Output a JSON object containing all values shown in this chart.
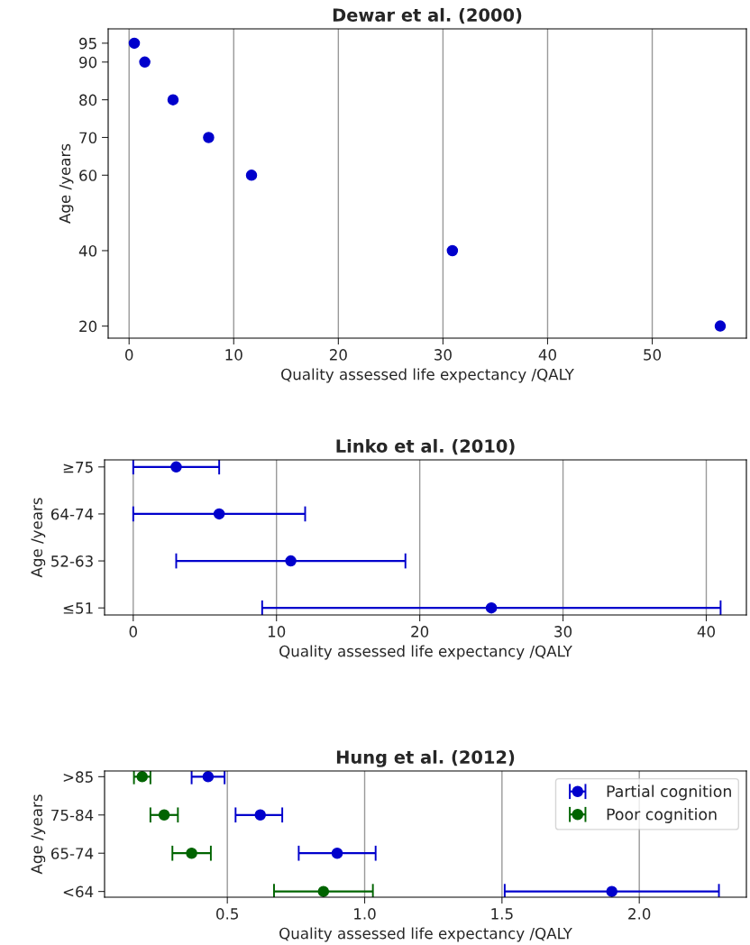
{
  "chart_data": [
    {
      "type": "scatter",
      "title": "Dewar et al. (2000)",
      "xlabel": "Quality assessed life expectancy /QALY",
      "ylabel": "Age /years",
      "x": [
        0.5,
        1.5,
        4.2,
        7.6,
        11.7,
        30.9,
        56.5
      ],
      "series": [
        {
          "color": "#0000cc",
          "values": [
            95,
            90,
            80,
            70,
            60,
            40,
            20
          ]
        }
      ],
      "xlim": [
        -2,
        59
      ],
      "xticks": [
        0,
        10,
        20,
        30,
        40,
        50
      ],
      "ylim": [
        16.8,
        98.8
      ],
      "yticks": [
        20,
        40,
        60,
        70,
        80,
        90,
        95
      ],
      "grid": "x",
      "marker": "circle",
      "legend": false
    },
    {
      "type": "scatter",
      "title": "Linko et al. (2010)",
      "xlabel": "Quality assessed life expectancy /QALY",
      "ylabel": "Age /years",
      "orientation": "horizontal",
      "categories": [
        "≥75",
        "64-74",
        "52-63",
        "≤51"
      ],
      "series": [
        {
          "color": "#0000cc",
          "values": [
            3,
            6,
            11,
            25
          ],
          "errors": [
            [
              0,
              6
            ],
            [
              0,
              12
            ],
            [
              3,
              19
            ],
            [
              9,
              41
            ]
          ]
        }
      ],
      "xlim": [
        -2,
        42.8
      ],
      "xticks": [
        0,
        10,
        20,
        30,
        40
      ],
      "grid": "x",
      "marker": "circle",
      "legend": false
    },
    {
      "type": "scatter",
      "title": "Hung et al. (2012)",
      "xlabel": "Quality assessed life expectancy /QALY",
      "ylabel": "Age /years",
      "orientation": "horizontal",
      "categories": [
        ">85",
        "75-84",
        "65-74",
        "<64"
      ],
      "series": [
        {
          "name": "Partial cognition",
          "color": "#0000cc",
          "values": [
            0.43,
            0.62,
            0.9,
            1.9
          ],
          "errors": [
            [
              0.37,
              0.49
            ],
            [
              0.53,
              0.7
            ],
            [
              0.76,
              1.04
            ],
            [
              1.51,
              2.29
            ]
          ]
        },
        {
          "name": "Poor cognition",
          "color": "#006400",
          "values": [
            0.19,
            0.27,
            0.37,
            0.85
          ],
          "errors": [
            [
              0.16,
              0.22
            ],
            [
              0.22,
              0.32
            ],
            [
              0.3,
              0.44
            ],
            [
              0.67,
              1.03
            ]
          ]
        }
      ],
      "xlim": [
        0.053,
        2.39
      ],
      "xticks": [
        {
          "value": 0.5,
          "label": "0.5"
        },
        {
          "value": 1.0,
          "label": "1.0"
        },
        {
          "value": 1.5,
          "label": "1.5"
        },
        {
          "value": 2.0,
          "label": "2.0"
        }
      ],
      "grid": "x",
      "marker": "circle",
      "legend": "top right"
    }
  ]
}
